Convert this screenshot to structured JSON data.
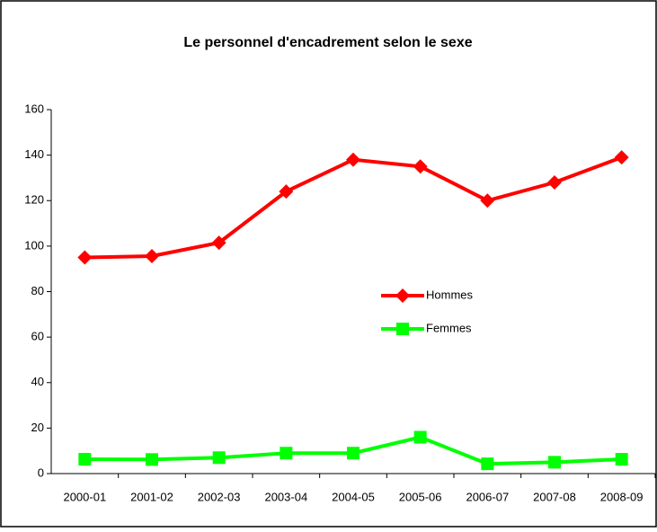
{
  "chart_data": {
    "type": "line",
    "title": "Le personnel d'encadrement selon le sexe",
    "categories": [
      "2000-01",
      "2001-02",
      "2002-03",
      "2003-04",
      "2004-05",
      "2005-06",
      "2006-07",
      "2007-08",
      "2008-09"
    ],
    "series": [
      {
        "name": "Hommes",
        "color": "#ff0000",
        "marker": "diamond",
        "values": [
          95,
          95.6,
          101.5,
          124,
          138,
          135,
          120,
          128,
          139
        ]
      },
      {
        "name": "Femmes",
        "color": "#00ff00",
        "marker": "square",
        "values": [
          6.3,
          6.2,
          7,
          9,
          9,
          16,
          4.3,
          5,
          6.3
        ]
      }
    ],
    "ylim": [
      0,
      160
    ],
    "yticks": [
      0,
      20,
      40,
      60,
      80,
      100,
      120,
      140,
      160
    ],
    "grid": false
  }
}
